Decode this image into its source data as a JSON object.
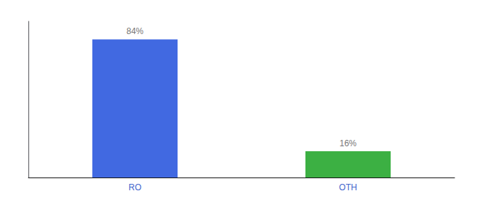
{
  "chart_data": {
    "type": "bar",
    "categories": [
      "RO",
      "OTH"
    ],
    "values": [
      84,
      16
    ],
    "value_labels": [
      "84%",
      "16%"
    ],
    "colors": [
      "#4169E1",
      "#3CB043"
    ],
    "ylim": [
      0,
      95
    ],
    "grid": false,
    "data_labels": true,
    "tick_labels": "x"
  }
}
